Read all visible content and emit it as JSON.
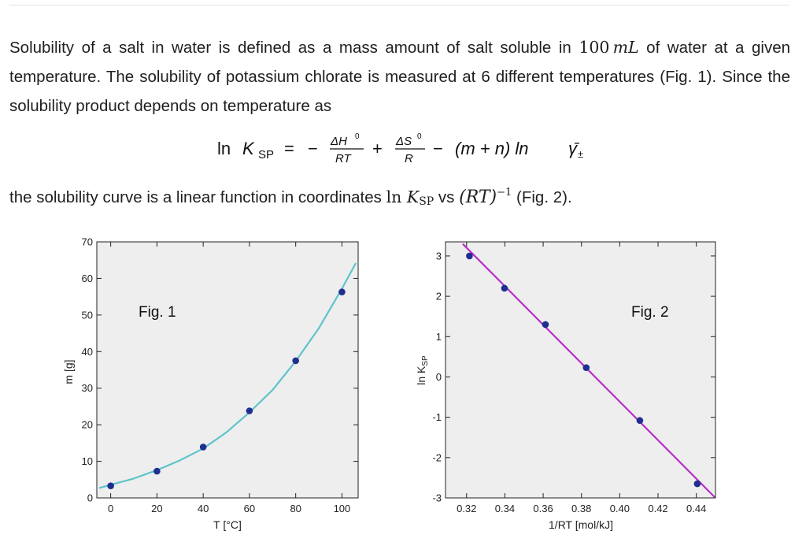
{
  "text": {
    "para1_a": "Solubility of a salt in water is defined as a mass amount of salt soluble in ",
    "para1_mass": "100",
    "para1_unit_m": "m",
    "para1_unit_L": "L",
    "para1_b": " of water at a given temperature. The solubility of potassium chlorate is measured at 6 different temperatures (Fig. 1). Since the solubility product depends on temperature as",
    "para2_a": "the solubility curve is a linear function in coordinates ",
    "para2_ln": "ln ",
    "para2_K": "K",
    "para2_sub": "SP",
    "para2_vs": " vs ",
    "para2_RT": "(RT)",
    "para2_exp": "−1",
    "para2_b": " (Fig. 2)."
  },
  "equation": {
    "lhs_ln": "ln",
    "lhs_K": "K",
    "lhs_sub": "SP",
    "eq": "=",
    "minus": "−",
    "frac1_num": "ΔH",
    "frac1_num_sup": "0",
    "frac1_den": "RT",
    "plus": "+",
    "frac2_num": "ΔS",
    "frac2_num_sup": "0",
    "frac2_den": "R",
    "minus2": "−",
    "term3": "(m + n) ln ",
    "gamma": "γ̄",
    "gamma_sub": "±"
  },
  "chart_data": [
    {
      "type": "scatter",
      "annotation": "Fig. 1",
      "xlabel": "T [°C]",
      "ylabel": "m [g]",
      "xlim": [
        -6,
        107
      ],
      "ylim": [
        0,
        70
      ],
      "xticks": [
        0,
        20,
        40,
        60,
        80,
        100
      ],
      "yticks": [
        0,
        10,
        20,
        30,
        40,
        50,
        60,
        70
      ],
      "points": {
        "x": [
          0,
          20,
          40,
          60,
          80,
          100
        ],
        "y": [
          3.3,
          7.3,
          13.9,
          23.8,
          37.5,
          56.3
        ]
      },
      "fit_curve": {
        "type": "exponential-fit",
        "x": [
          -5,
          0,
          10,
          20,
          30,
          40,
          50,
          60,
          70,
          80,
          90,
          100,
          106
        ],
        "y": [
          2.7,
          3.6,
          5.3,
          7.6,
          10.3,
          13.5,
          17.9,
          23.4,
          29.5,
          37.4,
          46.4,
          57.2,
          64.2
        ]
      },
      "colors": {
        "points": "#1f2f8f",
        "curve": "#5ec4c9",
        "background": "#eeeeee"
      },
      "grid": false
    },
    {
      "type": "scatter",
      "annotation": "Fig. 2",
      "xlabel": "1/RT [mol/kJ]",
      "ylabel": "ln K",
      "ylabel_sub": "SP",
      "xlim": [
        0.309,
        0.45
      ],
      "ylim": [
        -3,
        3.35
      ],
      "xticks": [
        0.32,
        0.34,
        0.36,
        0.38,
        0.4,
        0.42,
        0.44
      ],
      "xtick_labels": [
        "0.32",
        "0.34",
        "0.36",
        "0.38",
        "0.40",
        "0.42",
        "0.44"
      ],
      "yticks": [
        -3,
        -2,
        -1,
        0,
        1,
        2,
        3
      ],
      "ytick_labels": [
        "-3",
        "-2",
        "-1",
        "0",
        "1",
        "2",
        "3"
      ],
      "points": {
        "x": [
          0.3215,
          0.3398,
          0.3612,
          0.3825,
          0.4105,
          0.4405
        ],
        "y": [
          3.0,
          2.2,
          1.3,
          0.23,
          -1.08,
          -2.65
        ]
      },
      "fit_line": {
        "x": [
          0.318,
          0.45
        ],
        "y": [
          3.3,
          -3.0
        ]
      },
      "colors": {
        "points": "#1f2f8f",
        "line": "#b531c7",
        "background": "#eeeeee"
      },
      "grid": false
    }
  ]
}
